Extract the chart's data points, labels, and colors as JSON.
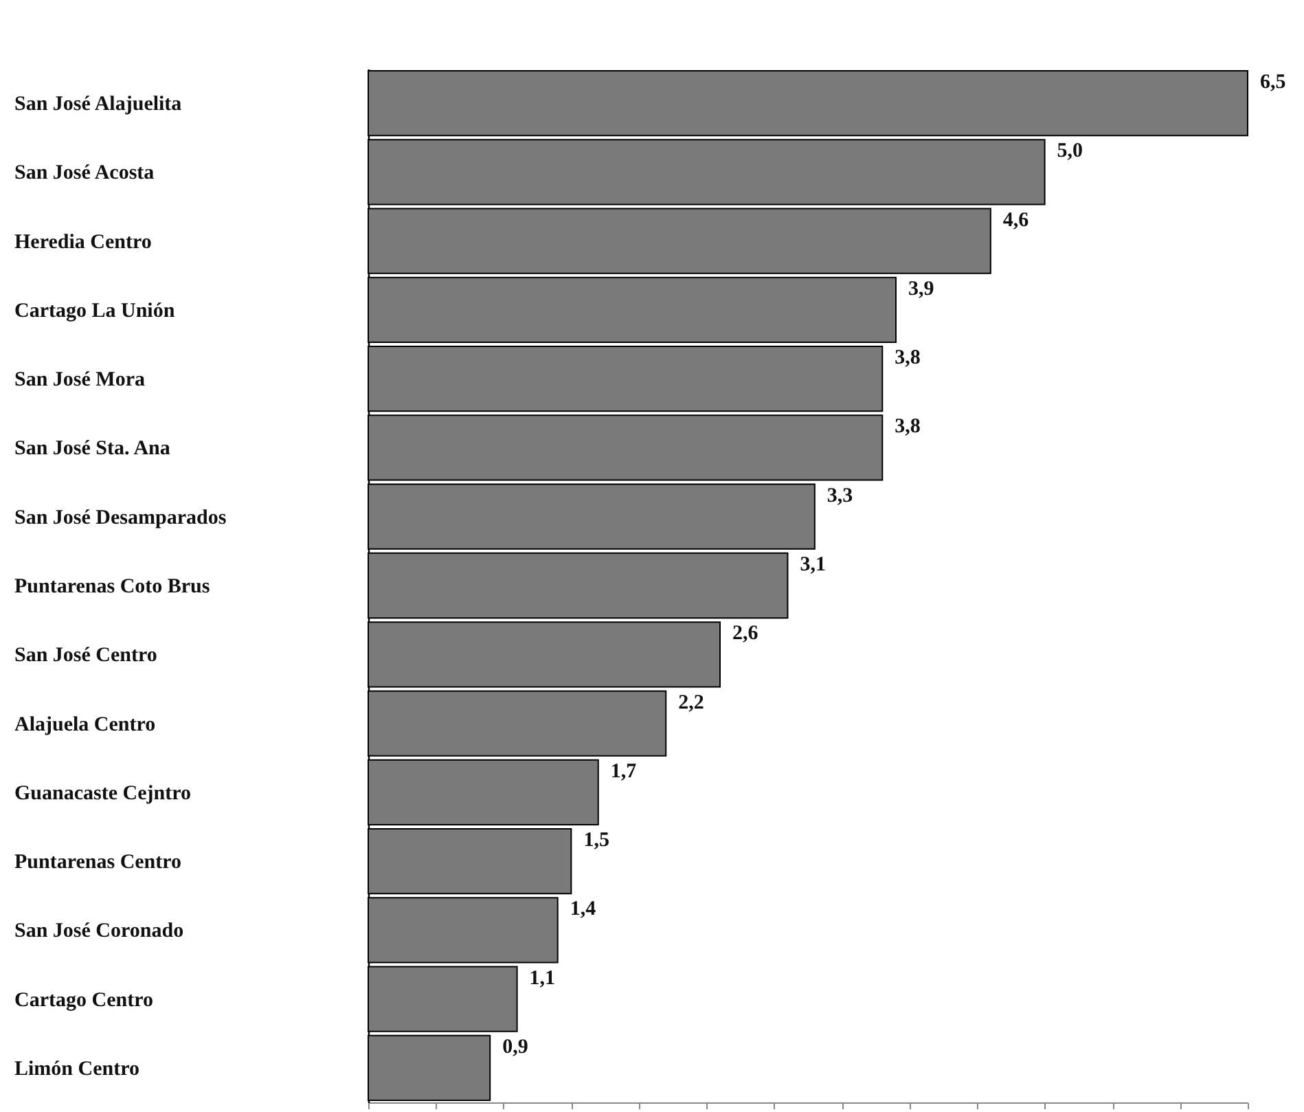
{
  "chart_data": {
    "type": "bar",
    "orientation": "horizontal",
    "relative": false,
    "categories": [
      "San José Alajuelita",
      "San José Acosta",
      "Heredia Centro",
      "Cartago La Unión",
      "San José Mora",
      "San José Sta. Ana",
      "San José Desamparados",
      "Puntarenas Coto Brus",
      "San José Centro",
      "Alajuela Centro",
      "Guanacaste Cejntro",
      "Puntarenas Centro",
      "San José Coronado",
      "Cartago Centro",
      "Limón Centro"
    ],
    "values": [
      6.5,
      5.0,
      4.6,
      3.9,
      3.8,
      3.8,
      3.3,
      3.1,
      2.6,
      2.2,
      1.7,
      1.5,
      1.4,
      1.1,
      0.9
    ],
    "value_labels": [
      "6,5",
      "5,0",
      "4,6",
      "3,9",
      "3,8",
      "3,8",
      "3,3",
      "3,1",
      "2,6",
      "2,2",
      "1,7",
      "1,5",
      "1,4",
      "1,1",
      "0,9"
    ],
    "color": "#7a7a7a"
  }
}
